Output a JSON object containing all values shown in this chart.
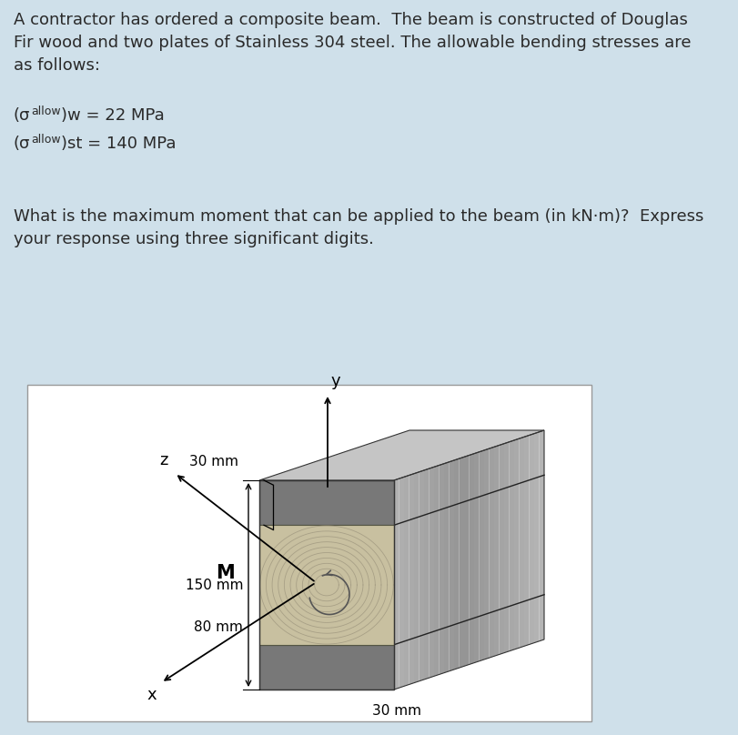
{
  "bg_color": "#cfe0ea",
  "box_bg": "#ffffff",
  "title_text1": "A contractor has ordered a composite beam.  The beam is constructed of Douglas",
  "title_text2": "Fir wood and two plates of Stainless 304 steel. The allowable bending stresses are",
  "title_text3": "as follows:",
  "question_text1": "What is the maximum moment that can be applied to the beam (in kN·m)?  Express",
  "question_text2": "your response using three significant digits.",
  "dim_150": "150 mm",
  "dim_30_top": "30 mm",
  "dim_80": "80 mm",
  "dim_30_bot": "30 mm",
  "label_y": "y",
  "label_z": "z",
  "label_x": "x",
  "label_M": "M",
  "font_size_body": 13,
  "font_size_dims": 11,
  "font_size_axis": 13,
  "steel_color_front": "#7a7a7a",
  "steel_color_side": "#a0a0a0",
  "steel_color_top": "#b8b8b8",
  "wood_color_front": "#c8c0a8",
  "wood_color_side_light": "#d8d0b8",
  "wood_grain_color": "#b0a890",
  "right_face_base": "#a8a8a8"
}
